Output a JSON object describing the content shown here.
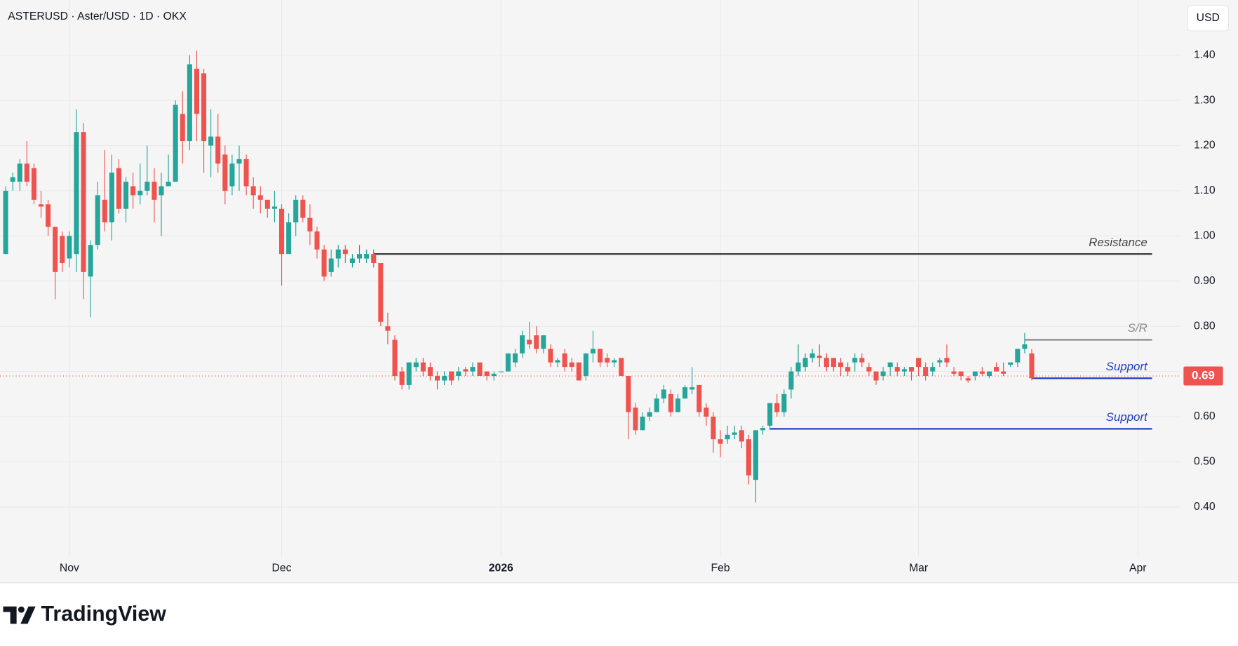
{
  "chart_data": {
    "type": "candlestick",
    "title": "ASTERUSD · Aster/USD · 1D · OKX",
    "currency": "USD",
    "up_color": "#26a69a",
    "down_color": "#ef5350",
    "open": [
      0.96,
      1.12,
      1.12,
      1.16,
      1.15,
      1.07,
      1.07,
      1.02,
      1.0,
      0.95,
      0.96,
      1.23,
      0.91,
      0.98,
      1.08,
      1.03,
      1.15,
      1.06,
      1.11,
      1.09,
      1.1,
      1.12,
      1.09,
      1.11,
      1.12,
      1.27,
      1.21,
      1.37,
      1.36,
      1.2,
      1.22,
      1.18,
      1.11,
      1.16,
      1.17,
      1.11,
      1.09,
      1.08,
      1.06,
      1.06,
      0.96,
      1.03,
      1.08,
      1.04,
      1.01,
      0.97,
      0.92,
      0.95,
      0.97,
      0.94,
      0.95,
      0.95,
      0.96,
      0.94,
      0.8,
      0.77,
      0.7,
      0.67,
      0.71,
      0.72,
      0.71,
      0.69,
      0.68,
      0.7,
      0.69,
      0.705,
      0.7,
      0.72,
      0.7,
      0.69,
      0.7,
      0.7,
      0.72,
      0.74,
      0.77,
      0.78,
      0.75,
      0.75,
      0.72,
      0.74,
      0.72,
      0.72,
      0.69,
      0.74,
      0.75,
      0.73,
      0.72,
      0.73,
      0.69,
      0.62,
      0.57,
      0.6,
      0.61,
      0.64,
      0.65,
      0.61,
      0.64,
      0.66,
      0.67,
      0.62,
      0.6,
      0.55,
      0.55,
      0.56,
      0.57,
      0.55,
      0.46,
      0.57,
      0.58,
      0.63,
      0.61,
      0.66,
      0.7,
      0.71,
      0.73,
      0.735,
      0.73,
      0.73,
      0.72,
      0.71,
      0.72,
      0.73,
      0.71,
      0.7,
      0.69,
      0.71,
      0.71,
      0.7,
      0.71,
      0.73,
      0.71,
      0.7,
      0.72,
      0.73,
      0.7,
      0.7,
      0.685,
      0.69,
      0.7,
      0.69,
      0.71,
      0.7,
      0.715,
      0.72,
      0.75,
      0.74
    ],
    "high": [
      1.11,
      1.14,
      1.17,
      1.21,
      1.16,
      1.1,
      1.08,
      1.02,
      1.01,
      1.01,
      1.28,
      1.25,
      0.99,
      1.12,
      1.19,
      1.18,
      1.17,
      1.13,
      1.14,
      1.16,
      1.2,
      1.15,
      1.14,
      1.18,
      1.3,
      1.32,
      1.4,
      1.41,
      1.37,
      1.28,
      1.27,
      1.2,
      1.18,
      1.2,
      1.18,
      1.13,
      1.11,
      1.08,
      1.1,
      1.07,
      1.05,
      1.09,
      1.09,
      1.07,
      1.02,
      0.98,
      0.97,
      0.98,
      0.98,
      0.96,
      0.98,
      0.97,
      0.97,
      0.94,
      0.83,
      0.78,
      0.71,
      0.72,
      0.73,
      0.73,
      0.72,
      0.7,
      0.7,
      0.7,
      0.71,
      0.71,
      0.72,
      0.72,
      0.7,
      0.7,
      0.7,
      0.74,
      0.75,
      0.79,
      0.81,
      0.8,
      0.78,
      0.76,
      0.73,
      0.75,
      0.73,
      0.72,
      0.74,
      0.79,
      0.75,
      0.74,
      0.73,
      0.73,
      0.69,
      0.63,
      0.61,
      0.62,
      0.65,
      0.67,
      0.66,
      0.65,
      0.67,
      0.71,
      0.67,
      0.63,
      0.61,
      0.57,
      0.58,
      0.58,
      0.58,
      0.56,
      0.57,
      0.58,
      0.63,
      0.65,
      0.66,
      0.71,
      0.76,
      0.74,
      0.75,
      0.76,
      0.74,
      0.73,
      0.73,
      0.72,
      0.74,
      0.74,
      0.72,
      0.7,
      0.71,
      0.72,
      0.72,
      0.71,
      0.71,
      0.73,
      0.72,
      0.72,
      0.73,
      0.76,
      0.71,
      0.7,
      0.69,
      0.7,
      0.71,
      0.7,
      0.72,
      0.72,
      0.72,
      0.75,
      0.785,
      0.75
    ],
    "low": [
      0.96,
      1.1,
      1.1,
      1.11,
      1.07,
      1.04,
      1.0,
      0.86,
      0.92,
      0.93,
      0.92,
      0.86,
      0.82,
      0.97,
      1.01,
      0.99,
      1.05,
      1.03,
      1.06,
      1.07,
      1.09,
      1.03,
      1.0,
      1.11,
      1.12,
      1.16,
      1.19,
      1.21,
      1.14,
      1.13,
      1.14,
      1.07,
      1.09,
      1.1,
      1.09,
      1.06,
      1.05,
      1.04,
      1.03,
      0.89,
      0.96,
      1.0,
      1.03,
      0.98,
      0.95,
      0.9,
      0.91,
      0.93,
      0.94,
      0.93,
      0.94,
      0.94,
      0.93,
      0.8,
      0.76,
      0.68,
      0.66,
      0.66,
      0.7,
      0.69,
      0.68,
      0.66,
      0.67,
      0.67,
      0.68,
      0.69,
      0.69,
      0.69,
      0.68,
      0.68,
      0.7,
      0.7,
      0.71,
      0.73,
      0.75,
      0.74,
      0.74,
      0.71,
      0.71,
      0.7,
      0.7,
      0.68,
      0.68,
      0.72,
      0.71,
      0.71,
      0.71,
      0.69,
      0.55,
      0.56,
      0.57,
      0.59,
      0.61,
      0.63,
      0.6,
      0.61,
      0.64,
      0.65,
      0.6,
      0.58,
      0.52,
      0.51,
      0.54,
      0.55,
      0.53,
      0.45,
      0.41,
      0.56,
      0.57,
      0.6,
      0.6,
      0.64,
      0.69,
      0.7,
      0.72,
      0.71,
      0.7,
      0.7,
      0.69,
      0.69,
      0.7,
      0.71,
      0.69,
      0.67,
      0.68,
      0.69,
      0.69,
      0.69,
      0.68,
      0.69,
      0.68,
      0.69,
      0.71,
      0.71,
      0.69,
      0.68,
      0.675,
      0.68,
      0.69,
      0.685,
      0.7,
      0.69,
      0.71,
      0.71,
      0.74,
      0.68
    ],
    "close": [
      1.1,
      1.13,
      1.16,
      1.12,
      1.08,
      1.065,
      1.02,
      0.92,
      0.94,
      1.0,
      1.23,
      0.92,
      0.98,
      1.09,
      1.03,
      1.14,
      1.06,
      1.12,
      1.09,
      1.1,
      1.12,
      1.08,
      1.11,
      1.12,
      1.29,
      1.21,
      1.38,
      1.27,
      1.21,
      1.22,
      1.16,
      1.1,
      1.16,
      1.17,
      1.11,
      1.09,
      1.08,
      1.06,
      1.065,
      0.96,
      1.03,
      1.08,
      1.04,
      1.01,
      0.97,
      0.91,
      0.95,
      0.97,
      0.96,
      0.95,
      0.96,
      0.96,
      0.94,
      0.81,
      0.79,
      0.69,
      0.67,
      0.72,
      0.72,
      0.7,
      0.69,
      0.68,
      0.69,
      0.68,
      0.7,
      0.7,
      0.71,
      0.69,
      0.69,
      0.695,
      0.7,
      0.74,
      0.74,
      0.78,
      0.76,
      0.75,
      0.78,
      0.72,
      0.725,
      0.71,
      0.71,
      0.68,
      0.74,
      0.75,
      0.72,
      0.72,
      0.725,
      0.69,
      0.61,
      0.57,
      0.6,
      0.61,
      0.64,
      0.66,
      0.61,
      0.64,
      0.665,
      0.665,
      0.61,
      0.6,
      0.55,
      0.54,
      0.56,
      0.565,
      0.545,
      0.47,
      0.57,
      0.575,
      0.63,
      0.61,
      0.65,
      0.7,
      0.72,
      0.73,
      0.74,
      0.73,
      0.71,
      0.71,
      0.71,
      0.7,
      0.73,
      0.72,
      0.7,
      0.68,
      0.7,
      0.72,
      0.7,
      0.705,
      0.7,
      0.71,
      0.69,
      0.71,
      0.725,
      0.72,
      0.695,
      0.69,
      0.68,
      0.7,
      0.695,
      0.7,
      0.7,
      0.695,
      0.72,
      0.75,
      0.76,
      0.685
    ],
    "xlim": [
      -0.8,
      166
    ],
    "xticks": [
      {
        "value": 9,
        "label": "Nov"
      },
      {
        "value": 39,
        "label": "Dec"
      },
      {
        "value": 70,
        "label": "2026"
      },
      {
        "value": 101,
        "label": "Feb"
      },
      {
        "value": 129,
        "label": "Mar"
      },
      {
        "value": 160,
        "label": "Apr"
      }
    ],
    "ylim": [
      0.29,
      1.522
    ],
    "yticks": [
      {
        "value": 0.4,
        "label": "0.40"
      },
      {
        "value": 0.5,
        "label": "0.50"
      },
      {
        "value": 0.6,
        "label": "0.60"
      },
      {
        "value": 0.7,
        "label": "0.70"
      },
      {
        "value": 0.8,
        "label": "0.80"
      },
      {
        "value": 0.9,
        "label": "0.90"
      },
      {
        "value": 1.0,
        "label": "1.00"
      },
      {
        "value": 1.1,
        "label": "1.10"
      },
      {
        "value": 1.2,
        "label": "1.20"
      },
      {
        "value": 1.3,
        "label": "1.30"
      },
      {
        "value": 1.4,
        "label": "1.40"
      }
    ],
    "grid": true,
    "last_price": 0.69,
    "last_price_color": "#ef5350",
    "levels": [
      {
        "label": "Resistance",
        "value": 0.96,
        "from": 52,
        "to": 162,
        "color": "#3a3a3a",
        "label_color": "#444444"
      },
      {
        "label": "S/R",
        "value": 0.77,
        "from": 144,
        "to": 162,
        "color": "#8a8a8a",
        "label_color": "#8a8a8a"
      },
      {
        "label": "Support",
        "value": 0.685,
        "from": 145,
        "to": 162,
        "color": "#1f3fbf",
        "label_color": "#1f3fbf"
      },
      {
        "label": "Support",
        "value": 0.573,
        "from": 108,
        "to": 162,
        "color": "#1f3fbf",
        "label_color": "#1f3fbf"
      }
    ]
  },
  "footer": {
    "brand": "TradingView"
  }
}
